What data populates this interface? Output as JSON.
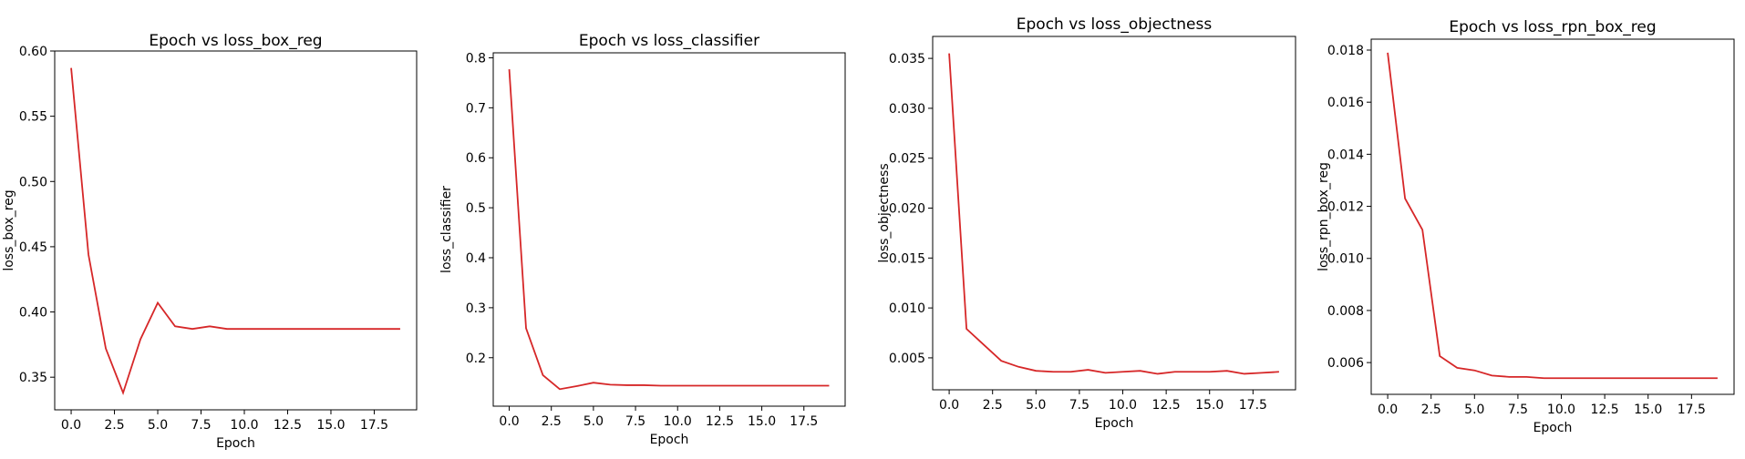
{
  "line_color": "#d62728",
  "chart_data": [
    {
      "type": "line",
      "title": "Epoch vs loss_box_reg",
      "xlabel": "Epoch",
      "ylabel": "loss_box_reg",
      "xlim": [
        -0.95,
        19.95
      ],
      "ylim": [
        0.325,
        0.6
      ],
      "xticks": [
        0.0,
        2.5,
        5.0,
        7.5,
        10.0,
        12.5,
        15.0,
        17.5
      ],
      "xtick_labels": [
        "0.0",
        "2.5",
        "5.0",
        "7.5",
        "10.0",
        "12.5",
        "15.0",
        "17.5"
      ],
      "yticks": [
        0.35,
        0.4,
        0.45,
        0.5,
        0.55,
        0.6
      ],
      "ytick_labels": [
        "0.35",
        "0.40",
        "0.45",
        "0.50",
        "0.55",
        "0.60"
      ],
      "series": [
        {
          "x": [
            0,
            1,
            2,
            3,
            4,
            5,
            6,
            7,
            8,
            9,
            10,
            11,
            12,
            13,
            14,
            15,
            16,
            17,
            18,
            19
          ],
          "y": [
            0.587,
            0.444,
            0.372,
            0.338,
            0.379,
            0.407,
            0.389,
            0.387,
            0.389,
            0.387,
            0.387,
            0.387,
            0.387,
            0.387,
            0.387,
            0.387,
            0.387,
            0.387,
            0.387,
            0.387
          ]
        }
      ]
    },
    {
      "type": "line",
      "title": "Epoch vs loss_classifier",
      "xlabel": "Epoch",
      "ylabel": "loss_classifier",
      "xlim": [
        -0.95,
        19.95
      ],
      "ylim": [
        0.103,
        0.81
      ],
      "xticks": [
        0.0,
        2.5,
        5.0,
        7.5,
        10.0,
        12.5,
        15.0,
        17.5
      ],
      "xtick_labels": [
        "0.0",
        "2.5",
        "5.0",
        "7.5",
        "10.0",
        "12.5",
        "15.0",
        "17.5"
      ],
      "yticks": [
        0.2,
        0.3,
        0.4,
        0.5,
        0.6,
        0.7,
        0.8
      ],
      "ytick_labels": [
        "0.2",
        "0.3",
        "0.4",
        "0.5",
        "0.6",
        "0.7",
        "0.8"
      ],
      "series": [
        {
          "x": [
            0,
            1,
            2,
            3,
            4,
            5,
            6,
            7,
            8,
            9,
            10,
            11,
            12,
            13,
            14,
            15,
            16,
            17,
            18,
            19
          ],
          "y": [
            0.777,
            0.259,
            0.165,
            0.137,
            0.143,
            0.15,
            0.146,
            0.145,
            0.145,
            0.144,
            0.144,
            0.144,
            0.144,
            0.144,
            0.144,
            0.144,
            0.144,
            0.144,
            0.144,
            0.144
          ]
        }
      ]
    },
    {
      "type": "line",
      "title": "Epoch vs loss_objectness",
      "xlabel": "Epoch",
      "ylabel": "loss_objectness",
      "xlim": [
        -0.95,
        19.95
      ],
      "ylim": [
        0.0018,
        0.0372
      ],
      "xticks": [
        0.0,
        2.5,
        5.0,
        7.5,
        10.0,
        12.5,
        15.0,
        17.5
      ],
      "xtick_labels": [
        "0.0",
        "2.5",
        "5.0",
        "7.5",
        "10.0",
        "12.5",
        "15.0",
        "17.5"
      ],
      "yticks": [
        0.005,
        0.01,
        0.015,
        0.02,
        0.025,
        0.03,
        0.035
      ],
      "ytick_labels": [
        "0.005",
        "0.010",
        "0.015",
        "0.020",
        "0.025",
        "0.030",
        "0.035"
      ],
      "series": [
        {
          "x": [
            0,
            1,
            2,
            3,
            4,
            5,
            6,
            7,
            8,
            9,
            10,
            11,
            12,
            13,
            14,
            15,
            16,
            17,
            18,
            19
          ],
          "y": [
            0.0355,
            0.0079,
            0.0063,
            0.0047,
            0.0041,
            0.0037,
            0.0036,
            0.0036,
            0.0038,
            0.0035,
            0.0036,
            0.0037,
            0.0034,
            0.0036,
            0.0036,
            0.0036,
            0.0037,
            0.0034,
            0.0035,
            0.0036
          ]
        }
      ]
    },
    {
      "type": "line",
      "title": "Epoch vs loss_rpn_box_reg",
      "xlabel": "Epoch",
      "ylabel": "loss_rpn_box_reg",
      "xlim": [
        -0.95,
        19.95
      ],
      "ylim": [
        0.00478,
        0.01842
      ],
      "xticks": [
        0.0,
        2.5,
        5.0,
        7.5,
        10.0,
        12.5,
        15.0,
        17.5
      ],
      "xtick_labels": [
        "0.0",
        "2.5",
        "5.0",
        "7.5",
        "10.0",
        "12.5",
        "15.0",
        "17.5"
      ],
      "yticks": [
        0.006,
        0.008,
        0.01,
        0.012,
        0.014,
        0.016,
        0.018
      ],
      "ytick_labels": [
        "0.006",
        "0.008",
        "0.010",
        "0.012",
        "0.014",
        "0.016",
        "0.018"
      ],
      "series": [
        {
          "x": [
            0,
            1,
            2,
            3,
            4,
            5,
            6,
            7,
            8,
            9,
            10,
            11,
            12,
            13,
            14,
            15,
            16,
            17,
            18,
            19
          ],
          "y": [
            0.0179,
            0.0123,
            0.0111,
            0.00625,
            0.0058,
            0.0057,
            0.0055,
            0.00545,
            0.00545,
            0.0054,
            0.0054,
            0.0054,
            0.0054,
            0.0054,
            0.0054,
            0.0054,
            0.0054,
            0.0054,
            0.0054,
            0.0054
          ]
        }
      ]
    }
  ]
}
